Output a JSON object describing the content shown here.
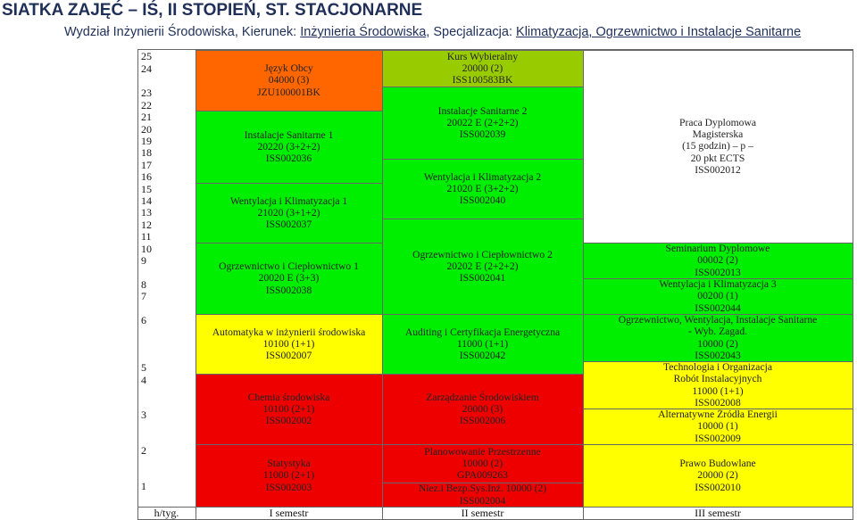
{
  "header": {
    "title": "SIATKA ZAJĘĆ – IŚ, II STOPIEŃ, ST. STACJONARNE",
    "faculty": "Wydział Inżynierii Środowiska",
    "major_label": "Kierunek:",
    "major": "Inżynieria Środowiska",
    "spec_label": "Specjalizacja:",
    "spec": "Klimatyzacja, Ogrzewnictwo i Instalacje Sanitarne"
  },
  "weeks": [
    "25",
    "24",
    "23",
    "22",
    "21",
    "20",
    "19",
    "18",
    "17",
    "16",
    "15",
    "14",
    "13",
    "12",
    "11",
    "10",
    "9",
    "8",
    "7",
    "6",
    "5",
    "4",
    "3",
    "2",
    "1"
  ],
  "footer": {
    "week_label": "h/tyg.",
    "sem1": "I semestr",
    "sem2": "II semestr",
    "sem3": "III semestr"
  },
  "sem1": [
    {
      "lines": [
        "Język Obcy",
        "04000 (3)",
        "JZU100001BK"
      ]
    },
    {
      "lines": [
        "Instalacje Sanitarne 1",
        "20220 (3+2+2)",
        "ISS002036"
      ]
    },
    {
      "lines": [
        "Wentylacja i Klimatyzacja 1",
        "21020 (3+1+2)",
        "ISS002037"
      ]
    },
    {
      "lines": [
        "Ogrzewnictwo i Ciepłownictwo 1",
        "20020 E (3+3)",
        "ISS002038"
      ]
    },
    {
      "lines": [
        "Automatyka w inżynierii środowiska",
        "10100 (1+1)",
        "ISS002007"
      ]
    },
    {
      "lines": [
        "Chemia środowiska",
        "10100 (2+1)",
        "ISS002002"
      ]
    },
    {
      "lines": [
        "Statystyka",
        "11000 (2+1)",
        "ISS002003"
      ]
    }
  ],
  "sem2": [
    {
      "lines": [
        "Kurs Wybieralny",
        "20000 (2)",
        "ISS100583BK"
      ]
    },
    {
      "lines": [
        "Instalacje Sanitarne 2",
        "20022 E (2+2+2)",
        "ISS002039"
      ]
    },
    {
      "lines": [
        "Wentylacja i Klimatyzacja 2",
        "21020 E (3+2+2)",
        "ISS002040"
      ]
    },
    {
      "lines": [
        "Ogrzewnictwo i Ciepłownictwo 2",
        "20202 E (2+2+2)",
        "ISS002041"
      ]
    },
    {
      "lines": [
        "Auditing i Certyfikacja Energetyczna",
        "11000 (1+1)",
        "ISS002042"
      ]
    },
    {
      "lines": [
        "Zarządzanie Środowiskiem",
        "20000 (3)",
        "ISS002006"
      ]
    },
    {
      "lines": [
        "Planowowanie Przestrzenne",
        "10000 (2)",
        "GPA009263"
      ]
    },
    {
      "lines": [
        "Niez.i Bezp.Sys.Inż. 10000 (2)",
        "ISS002004"
      ]
    }
  ],
  "sem3": [
    {
      "lines": [
        "Praca Dyplomowa",
        "Magisterska",
        "(15 godzin) – p –",
        "20 pkt ECTS",
        "ISS002012"
      ]
    },
    {
      "lines": [
        "Seminarium Dyplomowe",
        "00002 (2)",
        "ISS002013"
      ]
    },
    {
      "lines": [
        "Wentylacja i Klimatyzacja 3",
        "00200 (1)",
        "ISS002044"
      ]
    },
    {
      "lines": [
        "Ogrzewnictwo, Wentylacja, Instalacje Sanitarne",
        "- Wyb. Zagad.",
        "10000 (2)",
        "ISS002043"
      ]
    },
    {
      "lines": [
        "Technologia i Organizacja",
        "Robót Instalacyjnych",
        "11000 (1+1)",
        "ISS002008"
      ]
    },
    {
      "lines": [
        "Alternatywne Źródła Energii",
        "10000 (1)",
        "ISS002009"
      ]
    },
    {
      "lines": [
        "Prawo Budowlane",
        "20000 (2)",
        "ISS002010"
      ]
    }
  ]
}
